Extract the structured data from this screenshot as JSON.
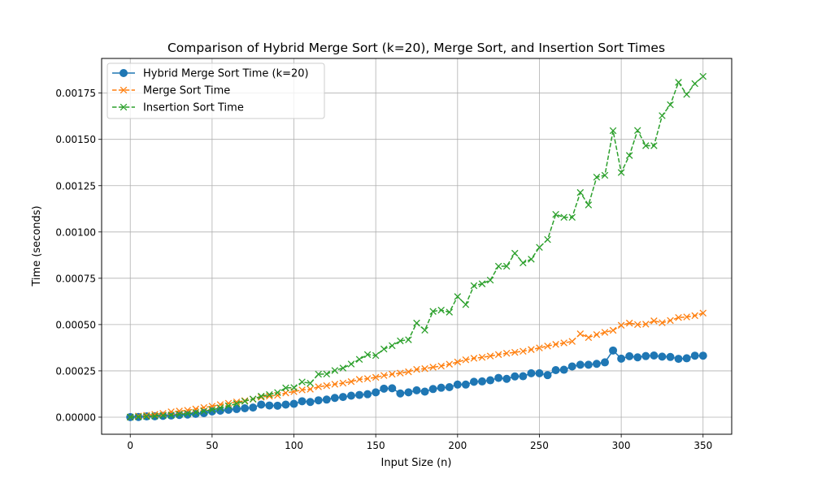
{
  "chart_data": {
    "type": "line",
    "title": "Comparison of Hybrid Merge Sort (k=20), Merge Sort, and Insertion Sort Times",
    "xlabel": "Input Size (n)",
    "ylabel": "Time (seconds)",
    "xlim": [
      -17.5,
      367.5
    ],
    "ylim": [
      -9.22e-05,
      0.001937
    ],
    "xticks": [
      0,
      50,
      100,
      150,
      200,
      250,
      300,
      350
    ],
    "xtick_labels": [
      "0",
      "50",
      "100",
      "150",
      "200",
      "250",
      "300",
      "350"
    ],
    "yticks": [
      0,
      0.00025,
      0.0005,
      0.00075,
      0.001,
      0.00125,
      0.0015,
      0.00175
    ],
    "ytick_labels": [
      "0.00000",
      "0.00025",
      "0.00050",
      "0.00075",
      "0.00100",
      "0.00125",
      "0.00150",
      "0.00175"
    ],
    "grid": true,
    "legend_position": "top-left",
    "x": [
      0,
      5,
      10,
      15,
      20,
      25,
      30,
      35,
      40,
      45,
      50,
      55,
      60,
      65,
      70,
      75,
      80,
      85,
      90,
      95,
      100,
      105,
      110,
      115,
      120,
      125,
      130,
      135,
      140,
      145,
      150,
      155,
      160,
      165,
      170,
      175,
      180,
      185,
      190,
      195,
      200,
      205,
      210,
      215,
      220,
      225,
      230,
      235,
      240,
      245,
      250,
      255,
      260,
      265,
      270,
      275,
      280,
      285,
      290,
      295,
      300,
      305,
      310,
      315,
      320,
      325,
      330,
      335,
      340,
      345,
      350
    ],
    "series": [
      {
        "name": "Hybrid Merge Sort Time (k=20)",
        "color": "#1f77b4",
        "linestyle": "solid",
        "marker": "circle",
        "values": [
          3e-07,
          1e-06,
          4e-06,
          5e-06,
          7e-06,
          9e-06,
          1.2e-05,
          1.4e-05,
          1.8e-05,
          2.2e-05,
          3.1e-05,
          3.5e-05,
          4e-05,
          4.4e-05,
          4.8e-05,
          5.2e-05,
          6.8e-05,
          6.3e-05,
          6.2e-05,
          6.8e-05,
          7.2e-05,
          8.6e-05,
          8.2e-05,
          9.1e-05,
          9.5e-05,
          0.000104,
          0.000109,
          0.000116,
          0.00012,
          0.000124,
          0.000134,
          0.000154,
          0.000156,
          0.000128,
          0.000134,
          0.000145,
          0.000138,
          0.000152,
          0.000159,
          0.000162,
          0.000176,
          0.000176,
          0.000191,
          0.000193,
          0.000199,
          0.000212,
          0.000207,
          0.00022,
          0.000221,
          0.000237,
          0.000237,
          0.000227,
          0.000254,
          0.000256,
          0.000274,
          0.000283,
          0.000283,
          0.000288,
          0.000296,
          0.00036,
          0.000316,
          0.000329,
          0.000323,
          0.00033,
          0.000333,
          0.000327,
          0.000325,
          0.000315,
          0.000318,
          0.000332,
          0.000332
        ]
      },
      {
        "name": "Merge Sort Time",
        "color": "#ff7f0e",
        "linestyle": "dashed",
        "marker": "x",
        "values": [
          3e-07,
          6e-06,
          1e-05,
          1.5e-05,
          2e-05,
          2.9e-05,
          3.3e-05,
          3.7e-05,
          4.4e-05,
          5.2e-05,
          5.9e-05,
          6.8e-05,
          7.5e-05,
          8.2e-05,
          8.9e-05,
          9.7e-05,
          0.000108,
          0.000114,
          0.000118,
          0.000131,
          0.000138,
          0.000147,
          0.000151,
          0.000164,
          0.00017,
          0.000178,
          0.000184,
          0.000192,
          0.000204,
          0.000208,
          0.000215,
          0.000225,
          0.000232,
          0.000238,
          0.000245,
          0.000258,
          0.000262,
          0.00027,
          0.000276,
          0.000286,
          0.000298,
          0.00031,
          0.000318,
          0.000323,
          0.00033,
          0.000338,
          0.000345,
          0.00035,
          0.000356,
          0.000365,
          0.000374,
          0.000384,
          0.000393,
          0.000401,
          0.000409,
          0.00045,
          0.00043,
          0.000446,
          0.000458,
          0.000469,
          0.000496,
          0.000508,
          0.0005,
          0.000502,
          0.00052,
          0.00051,
          0.000522,
          0.000538,
          0.000541,
          0.000548,
          0.000562
        ]
      },
      {
        "name": "Insertion Sort Time",
        "color": "#2ca02c",
        "linestyle": "dashed",
        "marker": "x",
        "values": [
          3e-07,
          2e-06,
          4e-06,
          6e-06,
          9e-06,
          1.1e-05,
          1.5e-05,
          1.9e-05,
          2.5e-05,
          3.2e-05,
          4e-05,
          5e-05,
          6.1e-05,
          7.3e-05,
          8.6e-05,
          9.8e-05,
          0.000113,
          0.000122,
          0.000133,
          0.000158,
          0.00016,
          0.00019,
          0.000183,
          0.000232,
          0.000233,
          0.000252,
          0.000265,
          0.000287,
          0.000312,
          0.000338,
          0.000333,
          0.000368,
          0.000386,
          0.000412,
          0.000418,
          0.000508,
          0.00047,
          0.000571,
          0.000578,
          0.000567,
          0.000651,
          0.000608,
          0.00071,
          0.00072,
          0.00074,
          0.000815,
          0.000815,
          0.000885,
          0.000833,
          0.000853,
          0.000917,
          0.000959,
          0.001095,
          0.001079,
          0.001079,
          0.001213,
          0.001146,
          0.001296,
          0.001306,
          0.001547,
          0.001321,
          0.001413,
          0.001548,
          0.001466,
          0.001466,
          0.001628,
          0.001687,
          0.001808,
          0.001743,
          0.001801,
          0.00184
        ]
      }
    ]
  }
}
